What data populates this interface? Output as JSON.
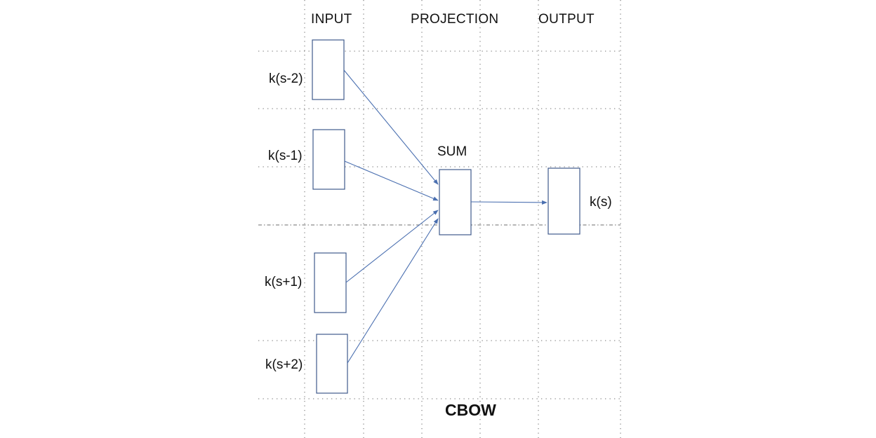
{
  "headers": {
    "input": "INPUT",
    "projection": "PROJECTION",
    "output": "OUTPUT"
  },
  "inputs": [
    "k(s-2)",
    "k(s-1)",
    "k(s+1)",
    "k(s+2)"
  ],
  "projection_label": "SUM",
  "output_label": "k(s)",
  "caption": "CBOW",
  "colors": {
    "box_stroke": "#3f5b8c",
    "arrow": "#4a6fb0",
    "grid": "#7a7a7a",
    "text": "#111111"
  }
}
